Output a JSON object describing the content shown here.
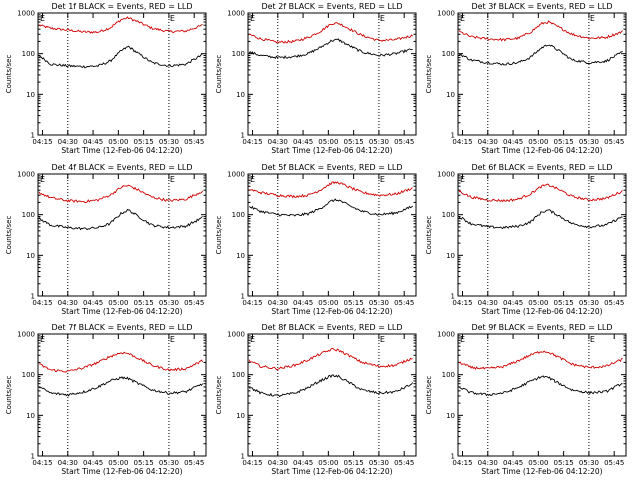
{
  "chart_data": [
    {
      "type": "line",
      "title": "Det 1f BLACK = Events, RED = LLD",
      "xlabel": "Start Time (12-Feb-06 04:12:20)",
      "ylabel": "Counts/sec",
      "x_ticks": [
        "04:15",
        "04:30",
        "04:45",
        "05:00",
        "05:15",
        "05:30",
        "05:45"
      ],
      "y_ticks": [
        "1",
        "10",
        "100",
        "1000"
      ],
      "yscale": "log",
      "ylim": [
        1,
        1000
      ],
      "markers": [
        {
          "label": "E",
          "time": "04:30"
        },
        {
          "label": "E",
          "time": "05:30"
        }
      ],
      "series": [
        {
          "color": "#d00000",
          "time": [
            "04:13",
            "04:20",
            "04:30",
            "04:40",
            "04:48",
            "04:55",
            "05:02",
            "05:06",
            "05:12",
            "05:20",
            "05:30",
            "05:40",
            "05:50"
          ],
          "values": [
            500,
            420,
            380,
            340,
            340,
            430,
            700,
            760,
            600,
            420,
            350,
            360,
            500
          ]
        },
        {
          "color": "#000000",
          "time": [
            "04:13",
            "04:20",
            "04:30",
            "04:40",
            "04:48",
            "04:55",
            "05:02",
            "05:06",
            "05:12",
            "05:20",
            "05:30",
            "05:40",
            "05:50"
          ],
          "values": [
            90,
            55,
            50,
            48,
            50,
            65,
            120,
            150,
            100,
            60,
            50,
            55,
            95
          ]
        }
      ]
    },
    {
      "type": "line",
      "title": "Det 2f BLACK = Events, RED = LLD",
      "xlabel": "Start Time (12-Feb-06 04:12:20)",
      "ylabel": "Counts/sec",
      "x_ticks": [
        "04:15",
        "04:30",
        "04:45",
        "05:00",
        "05:15",
        "05:30",
        "05:45"
      ],
      "y_ticks": [
        "1",
        "10",
        "100",
        "1000"
      ],
      "yscale": "log",
      "ylim": [
        1,
        1000
      ],
      "markers": [
        {
          "label": "E",
          "time": "04:30"
        },
        {
          "label": "E",
          "time": "05:30"
        }
      ],
      "series": [
        {
          "color": "#d00000",
          "time": [
            "04:13",
            "04:20",
            "04:30",
            "04:40",
            "04:48",
            "04:55",
            "05:02",
            "05:06",
            "05:12",
            "05:20",
            "05:30",
            "05:40",
            "05:50"
          ],
          "values": [
            300,
            230,
            190,
            200,
            250,
            350,
            550,
            560,
            420,
            280,
            210,
            220,
            280
          ]
        },
        {
          "color": "#000000",
          "time": [
            "04:13",
            "04:20",
            "04:30",
            "04:40",
            "04:48",
            "04:55",
            "05:02",
            "05:06",
            "05:12",
            "05:20",
            "05:30",
            "05:40",
            "05:50"
          ],
          "values": [
            110,
            90,
            80,
            85,
            100,
            140,
            210,
            220,
            160,
            110,
            90,
            100,
            130
          ]
        }
      ]
    },
    {
      "type": "line",
      "title": "Det 3f BLACK = Events, RED = LLD",
      "xlabel": "Start Time (12-Feb-06 04:12:20)",
      "ylabel": "Counts/sec",
      "x_ticks": [
        "04:15",
        "04:30",
        "04:45",
        "05:00",
        "05:15",
        "05:30",
        "05:45"
      ],
      "y_ticks": [
        "1",
        "10",
        "100",
        "1000"
      ],
      "yscale": "log",
      "ylim": [
        1,
        1000
      ],
      "markers": [
        {
          "label": "E",
          "time": "04:30"
        },
        {
          "label": "E",
          "time": "05:30"
        }
      ],
      "series": [
        {
          "color": "#d00000",
          "time": [
            "04:13",
            "04:20",
            "04:30",
            "04:40",
            "04:48",
            "04:55",
            "05:02",
            "05:06",
            "05:12",
            "05:20",
            "05:30",
            "05:40",
            "05:50"
          ],
          "values": [
            350,
            260,
            230,
            220,
            240,
            330,
            550,
            600,
            450,
            300,
            240,
            250,
            350
          ]
        },
        {
          "color": "#000000",
          "time": [
            "04:13",
            "04:20",
            "04:30",
            "04:40",
            "04:48",
            "04:55",
            "05:02",
            "05:06",
            "05:12",
            "05:20",
            "05:30",
            "05:40",
            "05:50"
          ],
          "values": [
            100,
            70,
            60,
            55,
            60,
            80,
            140,
            170,
            120,
            70,
            60,
            65,
            110
          ]
        }
      ]
    },
    {
      "type": "line",
      "title": "Det 4f BLACK = Events, RED = LLD",
      "xlabel": "Start Time (12-Feb-06 04:12:20)",
      "ylabel": "Counts/sec",
      "x_ticks": [
        "04:15",
        "04:30",
        "04:45",
        "05:00",
        "05:15",
        "05:30",
        "05:45"
      ],
      "y_ticks": [
        "1",
        "10",
        "100",
        "1000"
      ],
      "yscale": "log",
      "ylim": [
        1,
        1000
      ],
      "markers": [
        {
          "label": "E",
          "time": "04:30"
        },
        {
          "label": "E",
          "time": "05:30"
        }
      ],
      "series": [
        {
          "color": "#d00000",
          "time": [
            "04:13",
            "04:20",
            "04:30",
            "04:40",
            "04:48",
            "04:55",
            "05:02",
            "05:06",
            "05:12",
            "05:20",
            "05:30",
            "05:40",
            "05:50"
          ],
          "values": [
            350,
            260,
            220,
            210,
            230,
            300,
            480,
            520,
            400,
            270,
            220,
            240,
            380
          ]
        },
        {
          "color": "#000000",
          "time": [
            "04:13",
            "04:20",
            "04:30",
            "04:40",
            "04:48",
            "04:55",
            "05:02",
            "05:06",
            "05:12",
            "05:20",
            "05:30",
            "05:40",
            "05:50"
          ],
          "values": [
            80,
            55,
            48,
            45,
            48,
            60,
            110,
            130,
            90,
            55,
            48,
            52,
            85
          ]
        }
      ]
    },
    {
      "type": "line",
      "title": "Det 5f BLACK = Events, RED = LLD",
      "xlabel": "Start Time (12-Feb-06 04:12:20)",
      "ylabel": "Counts/sec",
      "x_ticks": [
        "04:15",
        "04:30",
        "04:45",
        "05:00",
        "05:15",
        "05:30",
        "05:45"
      ],
      "y_ticks": [
        "1",
        "10",
        "100",
        "1000"
      ],
      "yscale": "log",
      "ylim": [
        1,
        1000
      ],
      "markers": [
        {
          "label": "E",
          "time": "04:30"
        },
        {
          "label": "E",
          "time": "05:30"
        }
      ],
      "series": [
        {
          "color": "#d00000",
          "time": [
            "04:13",
            "04:20",
            "04:30",
            "04:40",
            "04:48",
            "04:55",
            "05:02",
            "05:06",
            "05:12",
            "05:20",
            "05:30",
            "05:40",
            "05:50"
          ],
          "values": [
            420,
            350,
            300,
            280,
            300,
            400,
            600,
            620,
            480,
            350,
            300,
            320,
            450
          ]
        },
        {
          "color": "#000000",
          "time": [
            "04:13",
            "04:20",
            "04:30",
            "04:40",
            "04:48",
            "04:55",
            "05:02",
            "05:06",
            "05:12",
            "05:20",
            "05:30",
            "05:40",
            "05:50"
          ],
          "values": [
            160,
            120,
            100,
            95,
            105,
            140,
            220,
            230,
            170,
            120,
            100,
            110,
            160
          ]
        }
      ]
    },
    {
      "type": "line",
      "title": "Det 6f BLACK = Events, RED = LLD",
      "xlabel": "Start Time (12-Feb-06 04:12:20)",
      "ylabel": "Counts/sec",
      "x_ticks": [
        "04:15",
        "04:30",
        "04:45",
        "05:00",
        "05:15",
        "05:30",
        "05:45"
      ],
      "y_ticks": [
        "1",
        "10",
        "100",
        "1000"
      ],
      "yscale": "log",
      "ylim": [
        1,
        1000
      ],
      "markers": [
        {
          "label": "E",
          "time": "04:30"
        },
        {
          "label": "E",
          "time": "05:30"
        }
      ],
      "series": [
        {
          "color": "#d00000",
          "time": [
            "04:13",
            "04:20",
            "04:30",
            "04:40",
            "04:48",
            "04:55",
            "05:02",
            "05:06",
            "05:12",
            "05:20",
            "05:30",
            "05:40",
            "05:50"
          ],
          "values": [
            380,
            270,
            230,
            220,
            240,
            320,
            500,
            540,
            420,
            280,
            230,
            250,
            380
          ]
        },
        {
          "color": "#000000",
          "time": [
            "04:13",
            "04:20",
            "04:30",
            "04:40",
            "04:48",
            "04:55",
            "05:02",
            "05:06",
            "05:12",
            "05:20",
            "05:30",
            "05:40",
            "05:50"
          ],
          "values": [
            90,
            60,
            50,
            48,
            52,
            65,
            115,
            130,
            95,
            60,
            50,
            55,
            90
          ]
        }
      ]
    },
    {
      "type": "line",
      "title": "Det 7f BLACK = Events, RED = LLD",
      "xlabel": "Start Time (12-Feb-06 04:12:20)",
      "ylabel": "Counts/sec",
      "x_ticks": [
        "04:15",
        "04:30",
        "04:45",
        "05:00",
        "05:15",
        "05:30",
        "05:45"
      ],
      "y_ticks": [
        "1",
        "10",
        "100",
        "1000"
      ],
      "yscale": "log",
      "ylim": [
        1,
        1000
      ],
      "markers": [
        {
          "label": "E",
          "time": "04:30"
        },
        {
          "label": "E",
          "time": "05:30"
        }
      ],
      "series": [
        {
          "color": "#d00000",
          "time": [
            "04:13",
            "04:20",
            "04:30",
            "04:40",
            "04:48",
            "04:55",
            "05:02",
            "05:06",
            "05:12",
            "05:20",
            "05:30",
            "05:40",
            "05:50"
          ],
          "values": [
            180,
            130,
            120,
            150,
            200,
            280,
            350,
            330,
            250,
            170,
            130,
            140,
            220
          ]
        },
        {
          "color": "#000000",
          "time": [
            "04:13",
            "04:20",
            "04:30",
            "04:40",
            "04:48",
            "04:55",
            "05:02",
            "05:06",
            "05:12",
            "05:20",
            "05:30",
            "05:40",
            "05:50"
          ],
          "values": [
            50,
            35,
            32,
            38,
            50,
            70,
            85,
            80,
            60,
            42,
            35,
            38,
            60
          ]
        }
      ]
    },
    {
      "type": "line",
      "title": "Det 8f BLACK = Events, RED = LLD",
      "xlabel": "Start Time (12-Feb-06 04:12:20)",
      "ylabel": "Counts/sec",
      "x_ticks": [
        "04:15",
        "04:30",
        "04:45",
        "05:00",
        "05:15",
        "05:30",
        "05:45"
      ],
      "y_ticks": [
        "1",
        "10",
        "100",
        "1000"
      ],
      "yscale": "log",
      "ylim": [
        1,
        1000
      ],
      "markers": [
        {
          "label": "E",
          "time": "04:30"
        },
        {
          "label": "E",
          "time": "05:30"
        }
      ],
      "series": [
        {
          "color": "#d00000",
          "time": [
            "04:13",
            "04:20",
            "04:30",
            "04:40",
            "04:48",
            "04:55",
            "05:02",
            "05:06",
            "05:12",
            "05:20",
            "05:30",
            "05:40",
            "05:50"
          ],
          "values": [
            220,
            160,
            140,
            170,
            230,
            320,
            420,
            400,
            300,
            200,
            160,
            170,
            260
          ]
        },
        {
          "color": "#000000",
          "time": [
            "04:13",
            "04:20",
            "04:30",
            "04:40",
            "04:48",
            "04:55",
            "05:02",
            "05:06",
            "05:12",
            "05:20",
            "05:30",
            "05:40",
            "05:50"
          ],
          "values": [
            50,
            35,
            30,
            35,
            48,
            70,
            95,
            90,
            65,
            42,
            35,
            38,
            60
          ]
        }
      ]
    },
    {
      "type": "line",
      "title": "Det 9f BLACK = Events, RED = LLD",
      "xlabel": "Start Time (12-Feb-06 04:12:20)",
      "ylabel": "Counts/sec",
      "x_ticks": [
        "04:15",
        "04:30",
        "04:45",
        "05:00",
        "05:15",
        "05:30",
        "05:45"
      ],
      "y_ticks": [
        "1",
        "10",
        "100",
        "1000"
      ],
      "yscale": "log",
      "ylim": [
        1,
        1000
      ],
      "markers": [
        {
          "label": "E",
          "time": "04:30"
        },
        {
          "label": "E",
          "time": "05:30"
        }
      ],
      "series": [
        {
          "color": "#d00000",
          "time": [
            "04:13",
            "04:20",
            "04:30",
            "04:40",
            "04:48",
            "04:55",
            "05:02",
            "05:06",
            "05:12",
            "05:20",
            "05:30",
            "05:40",
            "05:50"
          ],
          "values": [
            200,
            150,
            140,
            160,
            220,
            300,
            380,
            360,
            270,
            180,
            150,
            160,
            240
          ]
        },
        {
          "color": "#000000",
          "time": [
            "04:13",
            "04:20",
            "04:30",
            "04:40",
            "04:48",
            "04:55",
            "05:02",
            "05:06",
            "05:12",
            "05:20",
            "05:30",
            "05:40",
            "05:50"
          ],
          "values": [
            50,
            36,
            32,
            36,
            48,
            68,
            90,
            85,
            62,
            42,
            36,
            38,
            62
          ]
        }
      ]
    }
  ]
}
